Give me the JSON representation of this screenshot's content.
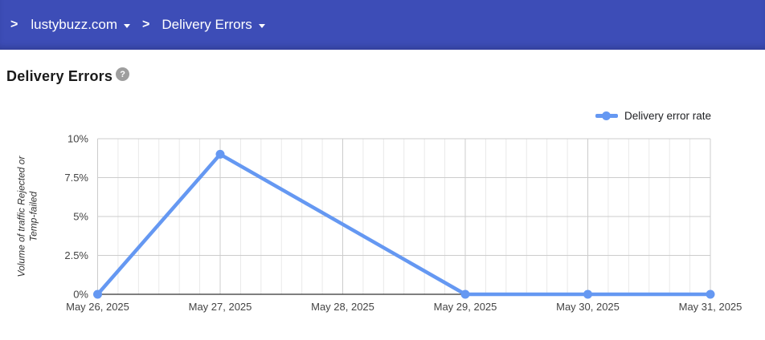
{
  "header": {
    "chevron_icon": ">",
    "domain_selector": {
      "label": "lustybuzz.com"
    },
    "page_selector": {
      "label": "Delivery Errors"
    }
  },
  "page": {
    "title": "Delivery Errors",
    "help_icon": "?"
  },
  "legend": {
    "label": "Delivery error rate"
  },
  "chart_data": {
    "type": "line",
    "title": "",
    "categories": [
      "May 26, 2025",
      "May 27, 2025",
      "May 28, 2025",
      "May 29, 2025",
      "May 30, 2025",
      "May 31, 2025"
    ],
    "series": [
      {
        "name": "Delivery error rate",
        "color": "#6598F2",
        "values": [
          0,
          9,
          null,
          0,
          0,
          0
        ]
      }
    ],
    "xlabel": "",
    "ylabel": "Volume of traffic Rejected or Temp-failed",
    "ylabel_lines": [
      "Volume of traffic Rejected or",
      "Temp-failed"
    ],
    "ylim": [
      0,
      10
    ],
    "y_ticks": [
      0,
      2.5,
      5,
      7.5,
      10
    ],
    "y_tick_labels": [
      "0%",
      "2.5%",
      "5%",
      "7.5%",
      "10%"
    ],
    "x_minor_divisions_per_interval": 6,
    "grid": "on",
    "legend_position": "top-right",
    "missing_points_interpolated": [
      "May 28, 2025"
    ]
  },
  "colors": {
    "header_bg": "#3D4DB7",
    "series_line": "#6598F2",
    "grid_major": "#cccccc",
    "grid_minor": "#e9e9e9",
    "axis_baseline": "#333333",
    "tick_label": "#444444",
    "help_icon_bg": "#9e9e9e"
  }
}
